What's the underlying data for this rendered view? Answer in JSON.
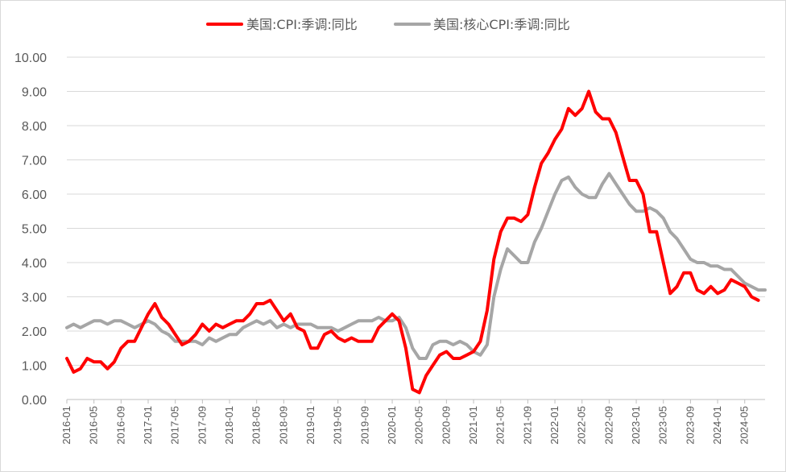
{
  "chart_data": {
    "type": "line",
    "title": "",
    "xlabel": "",
    "ylabel": "",
    "ylim": [
      0,
      10
    ],
    "yticks": [
      "0.00",
      "1.00",
      "2.00",
      "3.00",
      "4.00",
      "5.00",
      "6.00",
      "7.00",
      "8.00",
      "9.00",
      "10.00"
    ],
    "xtick_labels": [
      "2016-01",
      "2016-05",
      "2016-09",
      "2017-01",
      "2017-05",
      "2017-09",
      "2018-01",
      "2018-05",
      "2018-09",
      "2019-01",
      "2019-05",
      "2019-09",
      "2020-01",
      "2020-05",
      "2020-09",
      "2021-01",
      "2021-05",
      "2021-09",
      "2022-01",
      "2022-05",
      "2022-09",
      "2023-01",
      "2023-05",
      "2023-09",
      "2024-01",
      "2024-05"
    ],
    "grid": "horizontal",
    "legend_position": "top",
    "colors": {
      "cpi": "#ff0000",
      "core": "#a6a6a6"
    },
    "x": [
      "2016-01",
      "2016-02",
      "2016-03",
      "2016-04",
      "2016-05",
      "2016-06",
      "2016-07",
      "2016-08",
      "2016-09",
      "2016-10",
      "2016-11",
      "2016-12",
      "2017-01",
      "2017-02",
      "2017-03",
      "2017-04",
      "2017-05",
      "2017-06",
      "2017-07",
      "2017-08",
      "2017-09",
      "2017-10",
      "2017-11",
      "2017-12",
      "2018-01",
      "2018-02",
      "2018-03",
      "2018-04",
      "2018-05",
      "2018-06",
      "2018-07",
      "2018-08",
      "2018-09",
      "2018-10",
      "2018-11",
      "2018-12",
      "2019-01",
      "2019-02",
      "2019-03",
      "2019-04",
      "2019-05",
      "2019-06",
      "2019-07",
      "2019-08",
      "2019-09",
      "2019-10",
      "2019-11",
      "2019-12",
      "2020-01",
      "2020-02",
      "2020-03",
      "2020-04",
      "2020-05",
      "2020-06",
      "2020-07",
      "2020-08",
      "2020-09",
      "2020-10",
      "2020-11",
      "2020-12",
      "2021-01",
      "2021-02",
      "2021-03",
      "2021-04",
      "2021-05",
      "2021-06",
      "2021-07",
      "2021-08",
      "2021-09",
      "2021-10",
      "2021-11",
      "2021-12",
      "2022-01",
      "2022-02",
      "2022-03",
      "2022-04",
      "2022-05",
      "2022-06",
      "2022-07",
      "2022-08",
      "2022-09",
      "2022-10",
      "2022-11",
      "2022-12",
      "2023-01",
      "2023-02",
      "2023-03",
      "2023-04",
      "2023-05",
      "2023-06",
      "2023-07",
      "2023-08",
      "2023-09",
      "2023-10",
      "2023-11",
      "2023-12",
      "2024-01",
      "2024-02",
      "2024-03",
      "2024-04",
      "2024-05",
      "2024-06",
      "2024-07",
      "2024-08"
    ],
    "series": [
      {
        "name": "美国:CPI:季调:同比",
        "values": [
          1.2,
          0.8,
          0.9,
          1.2,
          1.1,
          1.1,
          0.9,
          1.1,
          1.5,
          1.7,
          1.7,
          2.1,
          2.5,
          2.8,
          2.4,
          2.2,
          1.9,
          1.6,
          1.7,
          1.9,
          2.2,
          2.0,
          2.2,
          2.1,
          2.2,
          2.3,
          2.3,
          2.5,
          2.8,
          2.8,
          2.9,
          2.6,
          2.3,
          2.5,
          2.1,
          2.0,
          1.5,
          1.5,
          1.9,
          2.0,
          1.8,
          1.7,
          1.8,
          1.7,
          1.7,
          1.7,
          2.1,
          2.3,
          2.5,
          2.3,
          1.5,
          0.3,
          0.2,
          0.7,
          1.0,
          1.3,
          1.4,
          1.2,
          1.2,
          1.3,
          1.4,
          1.7,
          2.6,
          4.1,
          4.9,
          5.3,
          5.3,
          5.2,
          5.4,
          6.2,
          6.9,
          7.2,
          7.6,
          7.9,
          8.5,
          8.3,
          8.5,
          9.0,
          8.4,
          8.2,
          8.2,
          7.8,
          7.1,
          6.4,
          6.4,
          6.0,
          4.9,
          4.9,
          4.0,
          3.1,
          3.3,
          3.7,
          3.7,
          3.2,
          3.1,
          3.3,
          3.1,
          3.2,
          3.5,
          3.4,
          3.3,
          3.0,
          2.9,
          null
        ]
      },
      {
        "name": "美国:核心CPI:季调:同比",
        "values": [
          2.1,
          2.2,
          2.1,
          2.2,
          2.3,
          2.3,
          2.2,
          2.3,
          2.3,
          2.2,
          2.1,
          2.2,
          2.3,
          2.2,
          2.0,
          1.9,
          1.7,
          1.7,
          1.7,
          1.7,
          1.6,
          1.8,
          1.7,
          1.8,
          1.9,
          1.9,
          2.1,
          2.2,
          2.3,
          2.2,
          2.3,
          2.1,
          2.2,
          2.1,
          2.2,
          2.2,
          2.2,
          2.1,
          2.1,
          2.1,
          2.0,
          2.1,
          2.2,
          2.3,
          2.3,
          2.3,
          2.4,
          2.3,
          2.3,
          2.4,
          2.1,
          1.5,
          1.2,
          1.2,
          1.6,
          1.7,
          1.7,
          1.6,
          1.7,
          1.6,
          1.4,
          1.3,
          1.6,
          3.0,
          3.8,
          4.4,
          4.2,
          4.0,
          4.0,
          4.6,
          5.0,
          5.5,
          6.0,
          6.4,
          6.5,
          6.2,
          6.0,
          5.9,
          5.9,
          6.3,
          6.6,
          6.3,
          6.0,
          5.7,
          5.5,
          5.5,
          5.6,
          5.5,
          5.3,
          4.9,
          4.7,
          4.4,
          4.1,
          4.0,
          4.0,
          3.9,
          3.9,
          3.8,
          3.8,
          3.6,
          3.4,
          3.3,
          3.2,
          3.2
        ]
      }
    ]
  }
}
